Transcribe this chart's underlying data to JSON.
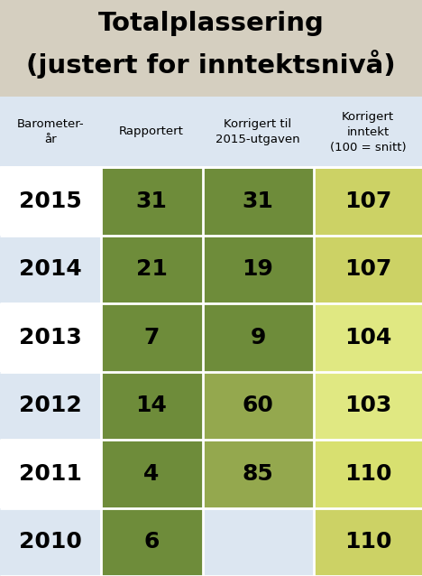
{
  "title_line1": "Totalplassering",
  "title_line2": "(justert for inntektsnivå)",
  "title_bg": "#d5cfc0",
  "header_bg": "#dce6f1",
  "years": [
    "2015",
    "2014",
    "2013",
    "2012",
    "2011",
    "2010"
  ],
  "rapportert": [
    31,
    21,
    7,
    14,
    4,
    6
  ],
  "korrigert_til": [
    31,
    19,
    9,
    60,
    85,
    null
  ],
  "korrigert_inntekt": [
    107,
    107,
    104,
    103,
    110,
    110
  ],
  "year_bg_odd": "#ffffff",
  "year_bg_even": "#dce6f1",
  "col2_color": "#6e8c3a",
  "col3_colors": [
    "#6e8c3a",
    "#6e8c3a",
    "#6e8c3a",
    "#94a84e",
    "#94a84e",
    "#dce6f1"
  ],
  "col4_colors": [
    "#d4d96a",
    "#d4d96a",
    "#e8e88a",
    "#e8e88a",
    "#e0e080",
    "#d4d96a"
  ],
  "col4_2015_2014": "#ccd468",
  "col4_2013_2012_2011": "#e6e882",
  "col4_2010": "#ccd468"
}
